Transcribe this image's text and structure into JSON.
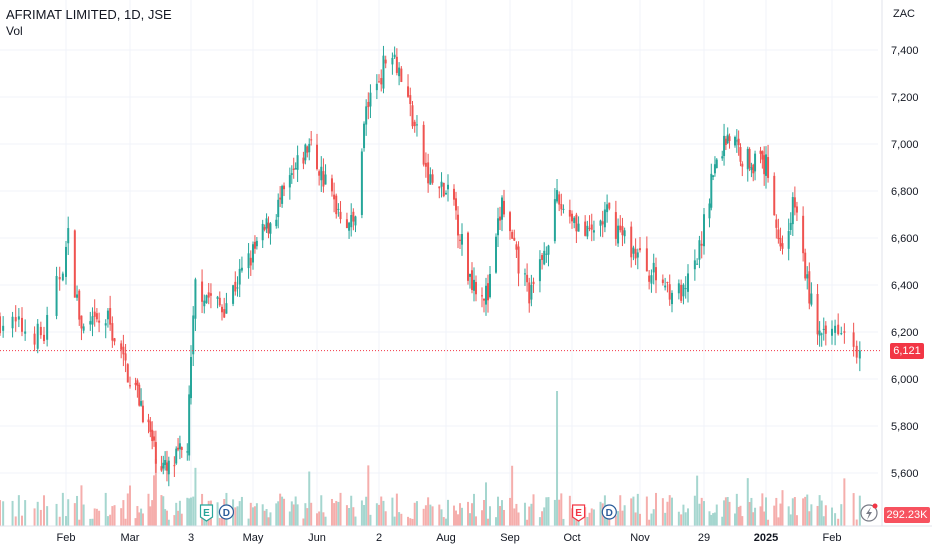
{
  "header": {
    "title": "AFRIMAT LIMITED, 1D, JSE",
    "volume_label": "Vol"
  },
  "currency": "ZAC",
  "last_price_label": "6,121",
  "last_volume_label": "292.23K",
  "colors": {
    "up": "#26a69a",
    "down": "#ef5350",
    "volume_up": "#a5d6cf",
    "volume_down": "#f5aeac",
    "grid": "#f0f3fa",
    "last_price_line": "#f23645"
  },
  "event_markers": [
    {
      "label": "E",
      "type": "earnings",
      "color": "#26a69a",
      "date": "2024-04-10"
    },
    {
      "label": "D",
      "type": "dividend",
      "color": "#26a69a",
      "date": "2024-04-19"
    },
    {
      "label": "E",
      "type": "earnings",
      "color": "#f23645",
      "date": "2024-10-04"
    },
    {
      "label": "D",
      "type": "dividend",
      "color": "#26a69a",
      "date": "2024-10-18"
    }
  ],
  "icons": {
    "flash": "lightning-icon"
  },
  "chart_data": {
    "type": "candlestick",
    "title": "AFRIMAT LIMITED, 1D, JSE",
    "y_axis": {
      "ticks": [
        5600,
        5800,
        6000,
        6200,
        6400,
        6600,
        6800,
        7000,
        7200,
        7400
      ],
      "tick_labels": [
        "5,600",
        "5,800",
        "6,000",
        "6,200",
        "6,400",
        "6,600",
        "6,800",
        "7,000",
        "7,200",
        "7,400"
      ],
      "range": [
        5480,
        7520
      ],
      "unit": "ZAC"
    },
    "x_axis": {
      "range": [
        "2024-01-11",
        "2025-02-14"
      ],
      "tick_labels": [
        "Feb",
        "Mar",
        "3",
        "May",
        "Jun",
        "2",
        "Aug",
        "Sep",
        "Oct",
        "Nov",
        "29",
        "2025",
        "Feb"
      ],
      "tick_dates": [
        "2024-02-01",
        "2024-03-01",
        "2024-04-03",
        "2024-05-01",
        "2024-06-03",
        "2024-07-02",
        "2024-08-01",
        "2024-09-02",
        "2024-10-01",
        "2024-11-01",
        "2024-11-29",
        "2025-01-02",
        "2025-02-03"
      ]
    },
    "last_price": 6121,
    "last_volume": 292230,
    "volume_scale_max": 1300000,
    "keypoints": [
      [
        "2024-01-11",
        6250
      ],
      [
        "2024-01-25",
        6180
      ],
      [
        "2024-02-02",
        6600
      ],
      [
        "2024-02-08",
        6200
      ],
      [
        "2024-02-20",
        6250
      ],
      [
        "2024-02-28",
        6050
      ],
      [
        "2024-03-07",
        5900
      ],
      [
        "2024-03-14",
        5700
      ],
      [
        "2024-03-21",
        5600
      ],
      [
        "2024-04-01",
        5720
      ],
      [
        "2024-04-05",
        6400
      ],
      [
        "2024-04-17",
        6300
      ],
      [
        "2024-05-02",
        6550
      ],
      [
        "2024-05-15",
        6750
      ],
      [
        "2024-05-30",
        7000
      ],
      [
        "2024-06-11",
        6750
      ],
      [
        "2024-06-20",
        6650
      ],
      [
        "2024-06-26",
        7150
      ],
      [
        "2024-07-08",
        7420
      ],
      [
        "2024-07-16",
        7150
      ],
      [
        "2024-07-24",
        6850
      ],
      [
        "2024-08-05",
        6750
      ],
      [
        "2024-08-12",
        6450
      ],
      [
        "2024-08-22",
        6350
      ],
      [
        "2024-08-29",
        6750
      ],
      [
        "2024-09-05",
        6500
      ],
      [
        "2024-09-12",
        6350
      ],
      [
        "2024-09-24",
        6750
      ],
      [
        "2024-10-01",
        6700
      ],
      [
        "2024-10-08",
        6600
      ],
      [
        "2024-10-17",
        6700
      ],
      [
        "2024-10-25",
        6600
      ],
      [
        "2024-11-06",
        6450
      ],
      [
        "2024-11-20",
        6350
      ],
      [
        "2024-11-26",
        6500
      ],
      [
        "2024-12-03",
        6850
      ],
      [
        "2024-12-12",
        7050
      ],
      [
        "2024-12-20",
        6950
      ],
      [
        "2025-01-03",
        6900
      ],
      [
        "2025-01-09",
        6550
      ],
      [
        "2025-01-16",
        6750
      ],
      [
        "2025-01-22",
        6400
      ],
      [
        "2025-01-29",
        6150
      ],
      [
        "2025-02-06",
        6250
      ],
      [
        "2025-02-12",
        6121
      ]
    ]
  }
}
